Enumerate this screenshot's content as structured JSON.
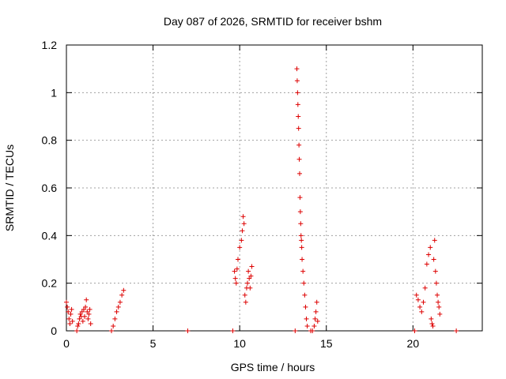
{
  "chart_data": {
    "type": "scatter",
    "title": "Day 087 of 2026, SRMTID for receiver bshm",
    "xlabel": "GPS time / hours",
    "ylabel": "SRMTID / TECUs",
    "xlim": [
      0,
      24
    ],
    "ylim": [
      0,
      1.2
    ],
    "xticks": [
      0,
      5,
      10,
      15,
      20
    ],
    "yticks": [
      0,
      0.2,
      0.4,
      0.6,
      0.8,
      1,
      1.2
    ],
    "ytick_labels": [
      "0",
      "0.2",
      "0.4",
      "0.6",
      "0.8",
      "1",
      "1.2"
    ],
    "xtick_labels": [
      "0",
      "5",
      "10",
      "15",
      "20"
    ],
    "grid": true,
    "marker": "+",
    "color": "#dd0000",
    "series": [
      {
        "name": "SRMTID",
        "points": [
          [
            0.0,
            0.12
          ],
          [
            0.05,
            0.1
          ],
          [
            0.1,
            0.08
          ],
          [
            0.15,
            0.05
          ],
          [
            0.2,
            0.03
          ],
          [
            0.25,
            0.07
          ],
          [
            0.3,
            0.09
          ],
          [
            0.35,
            0.04
          ],
          [
            0.6,
            0.0
          ],
          [
            0.65,
            0.02
          ],
          [
            0.7,
            0.03
          ],
          [
            0.75,
            0.05
          ],
          [
            0.8,
            0.07
          ],
          [
            0.85,
            0.06
          ],
          [
            0.9,
            0.08
          ],
          [
            0.95,
            0.04
          ],
          [
            1.0,
            0.09
          ],
          [
            1.05,
            0.06
          ],
          [
            1.1,
            0.1
          ],
          [
            1.15,
            0.13
          ],
          [
            1.2,
            0.08
          ],
          [
            1.25,
            0.05
          ],
          [
            1.3,
            0.07
          ],
          [
            1.35,
            0.09
          ],
          [
            1.4,
            0.03
          ],
          [
            2.6,
            0.0
          ],
          [
            2.7,
            0.02
          ],
          [
            2.8,
            0.05
          ],
          [
            2.9,
            0.08
          ],
          [
            3.0,
            0.1
          ],
          [
            3.1,
            0.12
          ],
          [
            3.2,
            0.15
          ],
          [
            3.3,
            0.17
          ],
          [
            7.0,
            0.0
          ],
          [
            9.6,
            0.0
          ],
          [
            9.7,
            0.25
          ],
          [
            9.75,
            0.22
          ],
          [
            9.8,
            0.2
          ],
          [
            9.85,
            0.26
          ],
          [
            9.9,
            0.3
          ],
          [
            10.0,
            0.35
          ],
          [
            10.1,
            0.38
          ],
          [
            10.15,
            0.42
          ],
          [
            10.2,
            0.48
          ],
          [
            10.25,
            0.45
          ],
          [
            10.3,
            0.15
          ],
          [
            10.35,
            0.12
          ],
          [
            10.4,
            0.18
          ],
          [
            10.45,
            0.2
          ],
          [
            10.5,
            0.25
          ],
          [
            10.55,
            0.22
          ],
          [
            10.6,
            0.18
          ],
          [
            10.65,
            0.23
          ],
          [
            10.7,
            0.27
          ],
          [
            13.2,
            0.0
          ],
          [
            13.3,
            1.1
          ],
          [
            13.32,
            1.05
          ],
          [
            13.34,
            1.0
          ],
          [
            13.36,
            0.95
          ],
          [
            13.38,
            0.9
          ],
          [
            13.4,
            0.85
          ],
          [
            13.42,
            0.78
          ],
          [
            13.44,
            0.72
          ],
          [
            13.46,
            0.66
          ],
          [
            13.48,
            0.56
          ],
          [
            13.5,
            0.5
          ],
          [
            13.52,
            0.45
          ],
          [
            13.54,
            0.4
          ],
          [
            13.56,
            0.38
          ],
          [
            13.58,
            0.35
          ],
          [
            13.6,
            0.3
          ],
          [
            13.65,
            0.25
          ],
          [
            13.7,
            0.2
          ],
          [
            13.75,
            0.15
          ],
          [
            13.8,
            0.1
          ],
          [
            13.85,
            0.05
          ],
          [
            13.9,
            0.02
          ],
          [
            14.1,
            0.0
          ],
          [
            14.2,
            0.0
          ],
          [
            14.3,
            0.02
          ],
          [
            14.35,
            0.05
          ],
          [
            14.4,
            0.08
          ],
          [
            14.45,
            0.12
          ],
          [
            14.5,
            0.04
          ],
          [
            20.1,
            0.0
          ],
          [
            20.2,
            0.15
          ],
          [
            20.3,
            0.13
          ],
          [
            20.4,
            0.1
          ],
          [
            20.5,
            0.08
          ],
          [
            20.6,
            0.12
          ],
          [
            20.7,
            0.18
          ],
          [
            20.8,
            0.28
          ],
          [
            20.9,
            0.32
          ],
          [
            21.0,
            0.35
          ],
          [
            21.05,
            0.05
          ],
          [
            21.1,
            0.03
          ],
          [
            21.15,
            0.02
          ],
          [
            21.2,
            0.3
          ],
          [
            21.25,
            0.38
          ],
          [
            21.3,
            0.25
          ],
          [
            21.35,
            0.2
          ],
          [
            21.4,
            0.15
          ],
          [
            21.45,
            0.12
          ],
          [
            21.5,
            0.1
          ],
          [
            21.55,
            0.07
          ],
          [
            22.5,
            0.0
          ]
        ]
      }
    ]
  }
}
